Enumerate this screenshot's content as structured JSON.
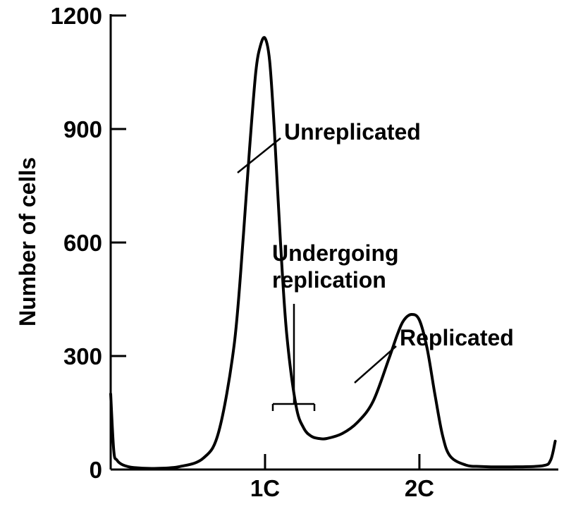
{
  "chart_data": {
    "type": "line",
    "title": "",
    "xlabel": "",
    "ylabel": "Number of cells",
    "ylim": [
      0,
      1200
    ],
    "yticks": [
      0,
      300,
      600,
      900,
      1200
    ],
    "xticks": [
      {
        "label": "1C",
        "value": 1
      },
      {
        "label": "2C",
        "value": 2
      }
    ],
    "xlim": [
      0.0,
      2.9
    ],
    "grid": false,
    "series": [
      {
        "x": [
          0.0,
          0.02,
          0.04,
          0.08,
          0.15,
          0.3,
          0.45,
          0.6,
          0.7,
          0.8,
          0.86,
          0.9,
          0.94,
          0.97,
          1.0,
          1.03,
          1.06,
          1.1,
          1.14,
          1.2,
          1.25,
          1.3,
          1.35,
          1.4,
          1.5,
          1.6,
          1.7,
          1.8,
          1.86,
          1.9,
          1.95,
          2.0,
          2.05,
          2.1,
          2.15,
          2.2,
          2.3,
          2.4,
          2.6,
          2.8,
          2.85,
          2.88
        ],
        "values": [
          200,
          50,
          25,
          12,
          5,
          3,
          8,
          30,
          100,
          330,
          620,
          850,
          1050,
          1120,
          1140,
          1080,
          900,
          600,
          360,
          170,
          110,
          88,
          82,
          82,
          95,
          125,
          180,
          290,
          360,
          395,
          410,
          395,
          320,
          200,
          90,
          35,
          12,
          8,
          7,
          10,
          25,
          75
        ]
      }
    ],
    "annotations": [
      {
        "text": "Unreplicated",
        "points_to": {
          "x": 1.02,
          "y": 790
        }
      },
      {
        "lines": [
          "Undergoing",
          "replication"
        ],
        "range_x": [
          1.3,
          1.65
        ],
        "y": 170
      },
      {
        "text": "Replicated",
        "points_to": {
          "x": 2.02,
          "y": 230
        }
      }
    ]
  }
}
